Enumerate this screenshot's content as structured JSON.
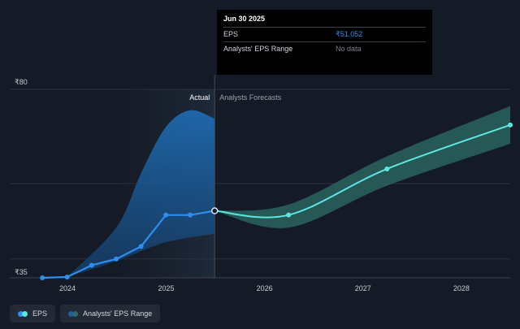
{
  "chart_data": {
    "type": "line",
    "x_axis": {
      "ticks": [
        "2024",
        "2025",
        "2026",
        "2027",
        "2028"
      ],
      "range": [
        "2023-06-01",
        "2028-06-30"
      ]
    },
    "y_axis": {
      "tick_labels": [
        "₹80",
        "₹35"
      ],
      "range": [
        35,
        80
      ],
      "grid": true
    },
    "sections": {
      "actual_label": "Actual",
      "forecast_label": "Analysts Forecasts"
    },
    "series": [
      {
        "name": "EPS",
        "color": "#2d8ff0",
        "points": [
          {
            "date": "2023-09-30",
            "value": 35.0
          },
          {
            "date": "2023-12-31",
            "value": 35.2
          },
          {
            "date": "2024-03-31",
            "value": 38.0
          },
          {
            "date": "2024-06-30",
            "value": 39.5
          },
          {
            "date": "2024-09-30",
            "value": 42.5
          },
          {
            "date": "2024-12-31",
            "value": 50.0
          },
          {
            "date": "2025-03-31",
            "value": 50.0
          },
          {
            "date": "2025-06-30",
            "value": 51.0
          }
        ]
      },
      {
        "name": "EPS Forecast",
        "color": "#5ee6e0",
        "points": [
          {
            "date": "2025-06-30",
            "value": 51.0
          },
          {
            "date": "2026-03-31",
            "value": 50.0
          },
          {
            "date": "2027-03-31",
            "value": 61.0
          },
          {
            "date": "2028-06-30",
            "value": 71.5
          }
        ]
      },
      {
        "name": "Analysts' EPS Range (historical)",
        "color": "#1f5f9e",
        "upper": [
          {
            "date": "2023-12-31",
            "value": 35.2
          },
          {
            "date": "2024-06-30",
            "value": 47.0
          },
          {
            "date": "2024-09-30",
            "value": 60.0
          },
          {
            "date": "2024-12-31",
            "value": 71.0
          },
          {
            "date": "2025-03-31",
            "value": 75.0
          },
          {
            "date": "2025-06-30",
            "value": 73.0
          }
        ],
        "lower": [
          {
            "date": "2023-12-31",
            "value": 35.2
          },
          {
            "date": "2024-06-30",
            "value": 39.0
          },
          {
            "date": "2024-12-31",
            "value": 43.5
          },
          {
            "date": "2025-06-30",
            "value": 45.5
          }
        ]
      },
      {
        "name": "Analysts' EPS Range (forecast)",
        "color": "#2c6e66",
        "upper": [
          {
            "date": "2025-06-30",
            "value": 51.0
          },
          {
            "date": "2026-03-31",
            "value": 52.5
          },
          {
            "date": "2027-03-31",
            "value": 64.0
          },
          {
            "date": "2028-06-30",
            "value": 76.0
          }
        ],
        "lower": [
          {
            "date": "2025-06-30",
            "value": 51.0
          },
          {
            "date": "2026-03-31",
            "value": 47.0
          },
          {
            "date": "2027-03-31",
            "value": 57.0
          },
          {
            "date": "2028-06-30",
            "value": 67.0
          }
        ]
      }
    ],
    "highlight_date": "2025-06-30"
  },
  "tooltip": {
    "date": "Jun 30 2025",
    "rows": [
      {
        "name": "EPS",
        "value": "₹51.052"
      },
      {
        "name": "Analysts' EPS Range",
        "value": "No data"
      }
    ]
  },
  "legend": [
    {
      "label": "EPS",
      "colors": [
        "#2d8ff0",
        "#5ee6e0"
      ]
    },
    {
      "label": "Analysts' EPS Range",
      "colors": [
        "#1f5f9e",
        "#2c6e66"
      ]
    }
  ]
}
